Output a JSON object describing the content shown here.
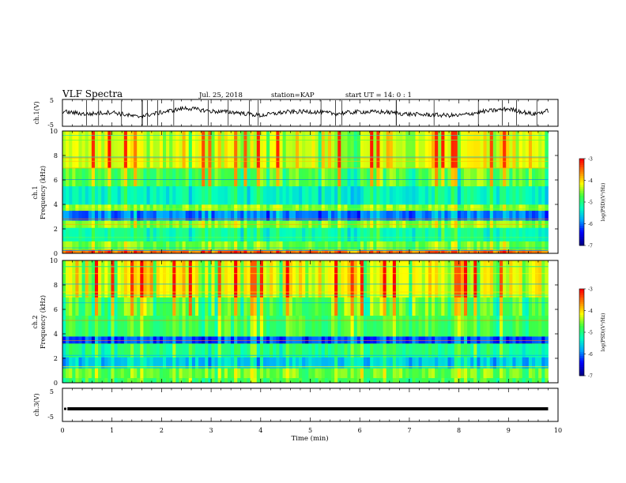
{
  "header": {
    "title": "VLF Spectra",
    "date": "Jul. 25, 2018",
    "station": "station=KAP",
    "start": "start  UT =   14: 0  : 1"
  },
  "chart_data": [
    {
      "type": "line",
      "panel": "ch1-waveform",
      "ylabel": "ch.1(V)",
      "yticks": [
        "5",
        "-5"
      ],
      "ylim": [
        -5,
        5
      ],
      "description_series": [
        {
          "x_min": [
            0.0,
            0.5,
            1.0,
            1.5,
            2.0,
            2.5,
            3.0,
            3.5,
            4.0,
            4.5,
            5.0,
            5.5,
            6.0,
            6.5,
            7.0,
            7.5,
            8.0,
            8.5,
            9.0,
            9.5,
            9.8
          ],
          "y_volts": [
            0.5,
            -0.5,
            0.3,
            -1.5,
            0.2,
            1.8,
            0.6,
            0.2,
            -1.0,
            0.3,
            0.5,
            -0.3,
            0.4,
            0.3,
            -0.5,
            -0.8,
            -1.0,
            0.5,
            1.5,
            -0.5,
            0.8
          ]
        }
      ]
    },
    {
      "type": "heatmap",
      "panel": "ch1-spectrogram",
      "ylabel": "ch.1\nFrequency (kHz)",
      "yticks": [
        "0",
        "2",
        "4",
        "6",
        "8",
        "10"
      ],
      "ylim": [
        0,
        10
      ],
      "colorbar": {
        "label": "log(PSD)(V²/Hz)",
        "ticks": [
          "-3",
          "-4",
          "-5",
          "-6",
          "-7"
        ],
        "range": [
          -7,
          -3
        ]
      },
      "bands_khz": [
        {
          "f": [
            0.0,
            0.3
          ],
          "level": -3.5
        },
        {
          "f": [
            0.3,
            1.0
          ],
          "level": -4.6
        },
        {
          "f": [
            1.0,
            2.1
          ],
          "level": -5.2
        },
        {
          "f": [
            2.1,
            2.7
          ],
          "level": -4.5
        },
        {
          "f": [
            2.7,
            3.5
          ],
          "level": -6.0
        },
        {
          "f": [
            3.5,
            4.0
          ],
          "level": -4.5
        },
        {
          "f": [
            4.0,
            5.5
          ],
          "level": -5.3
        },
        {
          "f": [
            5.5,
            7.0
          ],
          "level": -4.7
        },
        {
          "f": [
            7.0,
            10.0
          ],
          "level": -4.2
        }
      ]
    },
    {
      "type": "heatmap",
      "panel": "ch2-spectrogram",
      "ylabel": "ch.2\nFrequency (kHz)",
      "yticks": [
        "0",
        "2",
        "4",
        "6",
        "8",
        "10"
      ],
      "ylim": [
        0,
        10
      ],
      "colorbar": {
        "label": "log(PSD)(V²/Hz)",
        "ticks": [
          "-3",
          "-4",
          "-5",
          "-6",
          "-7"
        ],
        "range": [
          -7,
          -3
        ]
      },
      "bands_khz": [
        {
          "f": [
            0.0,
            0.4
          ],
          "level": -4.8
        },
        {
          "f": [
            0.4,
            1.2
          ],
          "level": -4.6
        },
        {
          "f": [
            1.2,
            2.1
          ],
          "level": -5.6
        },
        {
          "f": [
            2.1,
            3.2
          ],
          "level": -5.0
        },
        {
          "f": [
            3.2,
            3.8
          ],
          "level": -6.2
        },
        {
          "f": [
            3.8,
            5.5
          ],
          "level": -4.8
        },
        {
          "f": [
            5.5,
            7.0
          ],
          "level": -4.6
        },
        {
          "f": [
            7.0,
            10.0
          ],
          "level": -4.1
        }
      ]
    },
    {
      "type": "line",
      "panel": "ch3-waveform",
      "ylabel": "ch.3(V)",
      "yticks": [
        "5",
        "-5"
      ],
      "ylim": [
        -5,
        5
      ],
      "description_series": [
        {
          "x_min": [
            0.1,
            9.8
          ],
          "y_volts": [
            -1.2,
            -1.2
          ]
        }
      ]
    }
  ],
  "xaxis": {
    "label": "Time (min)",
    "ticks": [
      "0",
      "1",
      "2",
      "3",
      "4",
      "5",
      "6",
      "7",
      "8",
      "9",
      "10"
    ],
    "xlim": [
      0,
      10
    ],
    "data_end_min": 9.8
  },
  "colors": {
    "colormap": [
      "#000000",
      "#00008c",
      "#0000ff",
      "#00a8ff",
      "#00ffc0",
      "#40ff40",
      "#ffff00",
      "#ff8000",
      "#ff0000",
      "#ffffff"
    ]
  }
}
